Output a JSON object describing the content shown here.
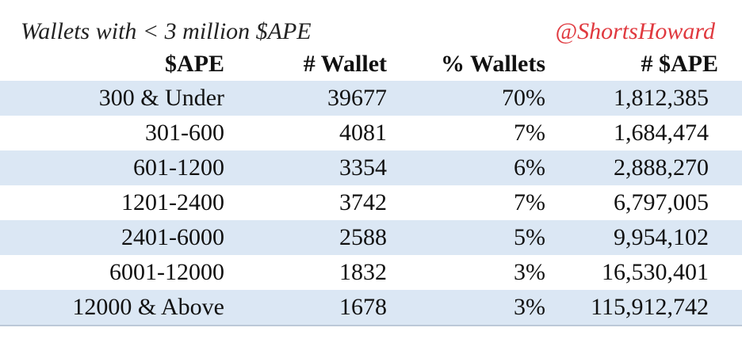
{
  "title": "Wallets with < 3 million $APE",
  "handle": "@ShortsHoward",
  "headers": [
    "$APE",
    "# Wallet",
    "% Wallets",
    "# $APE"
  ],
  "rows": [
    [
      "300 & Under",
      "39677",
      "70%",
      "1,812,385"
    ],
    [
      "301-600",
      "4081",
      "7%",
      "1,684,474"
    ],
    [
      "601-1200",
      "3354",
      "6%",
      "2,888,270"
    ],
    [
      "1201-2400",
      "3742",
      "7%",
      "6,797,005"
    ],
    [
      "2401-6000",
      "2588",
      "5%",
      "9,954,102"
    ],
    [
      "6001-12000",
      "1832",
      "3%",
      "16,530,401"
    ],
    [
      "12000 & Above",
      "1678",
      "3%",
      "115,912,742"
    ]
  ],
  "colors": {
    "row_shade": "#dbe7f4",
    "handle": "#e0393f"
  }
}
